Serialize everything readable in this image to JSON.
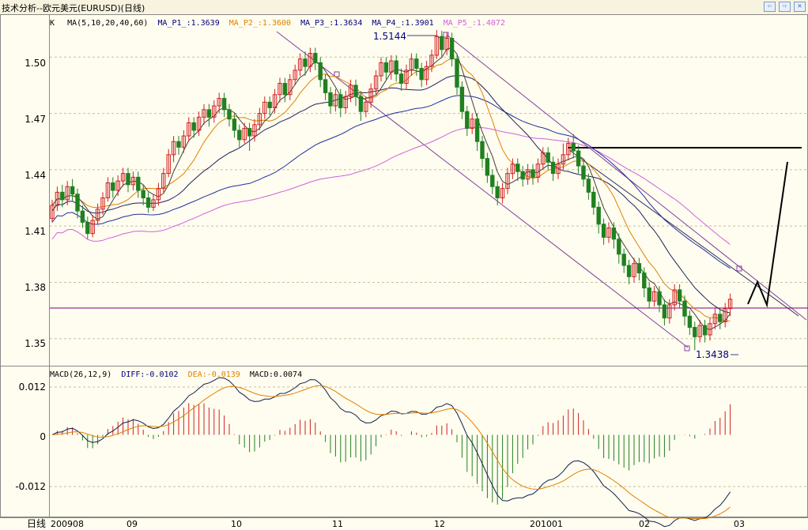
{
  "window": {
    "title": "技术分析--欧元美元(EURUSD)(日线)",
    "buttons": [
      {
        "name": "prev-button",
        "icon": "arrow-left-icon"
      },
      {
        "name": "next-button",
        "icon": "arrow-right-icon"
      },
      {
        "name": "close-button",
        "icon": "close-icon"
      }
    ],
    "button_glyphs": [
      "⇦",
      "⇨",
      "✕"
    ]
  },
  "main_panel": {
    "header": [
      {
        "text": "K",
        "color": "#000000"
      },
      {
        "text": "MA(5,10,20,40,60)",
        "color": "#000000"
      },
      {
        "text": "MA_P1_:1.3639",
        "color": "#000080"
      },
      {
        "text": "MA_P2_:1.3600",
        "color": "#e08000"
      },
      {
        "text": "MA_P3_:1.3634",
        "color": "#000080"
      },
      {
        "text": "MA_P4_:1.3901",
        "color": "#000080"
      },
      {
        "text": "MA_P5_:1.4072",
        "color": "#d060e0"
      }
    ],
    "high_label": "1.5144",
    "low_label": "1.3438",
    "y_ticks": [
      "1.50",
      "1.47",
      "1.44",
      "1.41",
      "1.38",
      "1.35"
    ]
  },
  "macd_panel": {
    "header": [
      {
        "text": "MACD(26,12,9)",
        "color": "#000000"
      },
      {
        "text": "DIFF:-0.0102",
        "color": "#000080"
      },
      {
        "text": "DEA:-0.0139",
        "color": "#e08000"
      },
      {
        "text": "MACD:0.0074",
        "color": "#000000"
      }
    ],
    "y_ticks": [
      "0.012",
      "0",
      "-0.012"
    ]
  },
  "x_axis": {
    "period_label": "日线",
    "ticks": [
      "200908",
      "09",
      "10",
      "11",
      "12",
      "201001",
      "02",
      "03"
    ]
  },
  "colors": {
    "background": "#fffdef",
    "up_candle": "#d02020",
    "down_candle": "#208020",
    "ma_blue": "#2030a0",
    "ma_orange": "#e08000",
    "ma_magenta": "#d060e0",
    "channel": "#8040a0",
    "grid": "#c8c0a0"
  },
  "chart_data": {
    "type": "candlestick",
    "title": "技术分析--欧元美元(EURUSD)(日线)",
    "ylim": [
      1.336,
      1.522
    ],
    "y_ticks": [
      1.35,
      1.38,
      1.41,
      1.44,
      1.47,
      1.5
    ],
    "x_ticks": [
      "200908",
      "09",
      "10",
      "11",
      "12",
      "201001",
      "02",
      "03"
    ],
    "candles": [
      [
        1.414,
        1.421,
        1.412,
        1.424
      ],
      [
        1.421,
        1.428,
        1.418,
        1.431
      ],
      [
        1.428,
        1.424,
        1.42,
        1.432
      ],
      [
        1.424,
        1.431,
        1.421,
        1.434
      ],
      [
        1.431,
        1.427,
        1.423,
        1.435
      ],
      [
        1.427,
        1.418,
        1.414,
        1.43
      ],
      [
        1.418,
        1.412,
        1.409,
        1.421
      ],
      [
        1.412,
        1.406,
        1.403,
        1.415
      ],
      [
        1.406,
        1.413,
        1.404,
        1.416
      ],
      [
        1.413,
        1.419,
        1.411,
        1.422
      ],
      [
        1.419,
        1.425,
        1.416,
        1.428
      ],
      [
        1.425,
        1.433,
        1.423,
        1.436
      ],
      [
        1.433,
        1.429,
        1.425,
        1.436
      ],
      [
        1.429,
        1.434,
        1.426,
        1.437
      ],
      [
        1.434,
        1.438,
        1.431,
        1.441
      ],
      [
        1.438,
        1.432,
        1.428,
        1.441
      ],
      [
        1.432,
        1.436,
        1.429,
        1.439
      ],
      [
        1.436,
        1.429,
        1.425,
        1.439
      ],
      [
        1.429,
        1.425,
        1.421,
        1.432
      ],
      [
        1.425,
        1.42,
        1.417,
        1.428
      ],
      [
        1.42,
        1.424,
        1.418,
        1.427
      ],
      [
        1.424,
        1.43,
        1.421,
        1.433
      ],
      [
        1.43,
        1.438,
        1.428,
        1.441
      ],
      [
        1.438,
        1.448,
        1.436,
        1.451
      ],
      [
        1.448,
        1.455,
        1.444,
        1.458
      ],
      [
        1.455,
        1.452,
        1.448,
        1.458
      ],
      [
        1.452,
        1.458,
        1.449,
        1.461
      ],
      [
        1.458,
        1.465,
        1.455,
        1.468
      ],
      [
        1.465,
        1.461,
        1.457,
        1.468
      ],
      [
        1.461,
        1.468,
        1.458,
        1.471
      ],
      [
        1.468,
        1.472,
        1.464,
        1.475
      ],
      [
        1.472,
        1.468,
        1.463,
        1.475
      ],
      [
        1.468,
        1.474,
        1.465,
        1.477
      ],
      [
        1.474,
        1.478,
        1.47,
        1.481
      ],
      [
        1.478,
        1.472,
        1.468,
        1.481
      ],
      [
        1.472,
        1.467,
        1.463,
        1.475
      ],
      [
        1.467,
        1.461,
        1.457,
        1.47
      ],
      [
        1.461,
        1.456,
        1.452,
        1.464
      ],
      [
        1.456,
        1.462,
        1.454,
        1.465
      ],
      [
        1.462,
        1.458,
        1.45,
        1.465
      ],
      [
        1.458,
        1.464,
        1.455,
        1.467
      ],
      [
        1.464,
        1.47,
        1.461,
        1.473
      ],
      [
        1.47,
        1.476,
        1.467,
        1.479
      ],
      [
        1.476,
        1.473,
        1.469,
        1.479
      ],
      [
        1.473,
        1.48,
        1.47,
        1.483
      ],
      [
        1.48,
        1.486,
        1.476,
        1.489
      ],
      [
        1.486,
        1.48,
        1.476,
        1.489
      ],
      [
        1.48,
        1.488,
        1.477,
        1.491
      ],
      [
        1.488,
        1.493,
        1.485,
        1.496
      ],
      [
        1.493,
        1.499,
        1.49,
        1.502
      ],
      [
        1.499,
        1.495,
        1.49,
        1.503
      ],
      [
        1.495,
        1.502,
        1.492,
        1.505
      ],
      [
        1.502,
        1.497,
        1.493,
        1.505
      ],
      [
        1.497,
        1.488,
        1.484,
        1.5
      ],
      [
        1.488,
        1.481,
        1.477,
        1.491
      ],
      [
        1.481,
        1.474,
        1.47,
        1.484
      ],
      [
        1.474,
        1.48,
        1.471,
        1.483
      ],
      [
        1.48,
        1.473,
        1.468,
        1.483
      ],
      [
        1.473,
        1.479,
        1.47,
        1.482
      ],
      [
        1.479,
        1.485,
        1.476,
        1.488
      ],
      [
        1.485,
        1.479,
        1.474,
        1.488
      ],
      [
        1.479,
        1.471,
        1.466,
        1.482
      ],
      [
        1.471,
        1.476,
        1.468,
        1.479
      ],
      [
        1.476,
        1.483,
        1.473,
        1.486
      ],
      [
        1.483,
        1.49,
        1.48,
        1.493
      ],
      [
        1.49,
        1.497,
        1.487,
        1.5
      ],
      [
        1.497,
        1.492,
        1.488,
        1.5
      ],
      [
        1.492,
        1.498,
        1.488,
        1.501
      ],
      [
        1.498,
        1.491,
        1.487,
        1.501
      ],
      [
        1.491,
        1.486,
        1.482,
        1.494
      ],
      [
        1.486,
        1.493,
        1.483,
        1.496
      ],
      [
        1.493,
        1.499,
        1.49,
        1.502
      ],
      [
        1.499,
        1.494,
        1.49,
        1.502
      ],
      [
        1.494,
        1.488,
        1.484,
        1.497
      ],
      [
        1.488,
        1.495,
        1.485,
        1.498
      ],
      [
        1.495,
        1.501,
        1.492,
        1.504
      ],
      [
        1.501,
        1.511,
        1.499,
        1.5144
      ],
      [
        1.511,
        1.504,
        1.5,
        1.514
      ],
      [
        1.504,
        1.51,
        1.501,
        1.513
      ],
      [
        1.51,
        1.499,
        1.495,
        1.513
      ],
      [
        1.499,
        1.484,
        1.48,
        1.502
      ],
      [
        1.484,
        1.471,
        1.467,
        1.487
      ],
      [
        1.471,
        1.462,
        1.458,
        1.474
      ],
      [
        1.462,
        1.467,
        1.459,
        1.47
      ],
      [
        1.467,
        1.455,
        1.45,
        1.47
      ],
      [
        1.455,
        1.446,
        1.441,
        1.458
      ],
      [
        1.446,
        1.437,
        1.433,
        1.449
      ],
      [
        1.437,
        1.431,
        1.427,
        1.44
      ],
      [
        1.431,
        1.425,
        1.421,
        1.434
      ],
      [
        1.425,
        1.43,
        1.422,
        1.433
      ],
      [
        1.43,
        1.438,
        1.427,
        1.441
      ],
      [
        1.438,
        1.443,
        1.435,
        1.446
      ],
      [
        1.443,
        1.439,
        1.434,
        1.446
      ],
      [
        1.439,
        1.435,
        1.431,
        1.442
      ],
      [
        1.435,
        1.44,
        1.432,
        1.443
      ],
      [
        1.44,
        1.436,
        1.432,
        1.443
      ],
      [
        1.436,
        1.443,
        1.433,
        1.446
      ],
      [
        1.443,
        1.449,
        1.44,
        1.452
      ],
      [
        1.449,
        1.444,
        1.44,
        1.452
      ],
      [
        1.444,
        1.438,
        1.434,
        1.447
      ],
      [
        1.438,
        1.443,
        1.435,
        1.446
      ],
      [
        1.443,
        1.448,
        1.44,
        1.454
      ],
      [
        1.448,
        1.454,
        1.445,
        1.457
      ],
      [
        1.454,
        1.45,
        1.446,
        1.459
      ],
      [
        1.45,
        1.442,
        1.438,
        1.453
      ],
      [
        1.442,
        1.435,
        1.431,
        1.445
      ],
      [
        1.435,
        1.428,
        1.424,
        1.438
      ],
      [
        1.428,
        1.42,
        1.416,
        1.431
      ],
      [
        1.42,
        1.411,
        1.406,
        1.423
      ],
      [
        1.411,
        1.404,
        1.4,
        1.414
      ],
      [
        1.404,
        1.409,
        1.401,
        1.412
      ],
      [
        1.409,
        1.403,
        1.398,
        1.412
      ],
      [
        1.403,
        1.395,
        1.39,
        1.406
      ],
      [
        1.395,
        1.389,
        1.385,
        1.398
      ],
      [
        1.389,
        1.383,
        1.379,
        1.392
      ],
      [
        1.383,
        1.39,
        1.38,
        1.393
      ],
      [
        1.39,
        1.385,
        1.381,
        1.393
      ],
      [
        1.385,
        1.377,
        1.372,
        1.388
      ],
      [
        1.377,
        1.37,
        1.366,
        1.38
      ],
      [
        1.37,
        1.375,
        1.367,
        1.378
      ],
      [
        1.375,
        1.368,
        1.364,
        1.378
      ],
      [
        1.368,
        1.361,
        1.357,
        1.371
      ],
      [
        1.361,
        1.368,
        1.358,
        1.371
      ],
      [
        1.368,
        1.376,
        1.365,
        1.379
      ],
      [
        1.376,
        1.37,
        1.366,
        1.379
      ],
      [
        1.37,
        1.362,
        1.357,
        1.373
      ],
      [
        1.362,
        1.356,
        1.352,
        1.365
      ],
      [
        1.356,
        1.351,
        1.3438,
        1.359
      ],
      [
        1.351,
        1.357,
        1.348,
        1.36
      ],
      [
        1.357,
        1.352,
        1.348,
        1.36
      ],
      [
        1.352,
        1.358,
        1.349,
        1.361
      ],
      [
        1.358,
        1.363,
        1.355,
        1.366
      ],
      [
        1.363,
        1.359,
        1.355,
        1.366
      ],
      [
        1.359,
        1.366,
        1.356,
        1.369
      ],
      [
        1.366,
        1.371,
        1.362,
        1.374
      ]
    ],
    "series": [
      {
        "name": "MA_P1_",
        "value": 1.3639
      },
      {
        "name": "MA_P2_",
        "value": 1.36
      },
      {
        "name": "MA_P3_",
        "value": 1.3634
      },
      {
        "name": "MA_P4_",
        "value": 1.3901
      },
      {
        "name": "MA_P5_",
        "value": 1.4072
      }
    ],
    "annotations": [
      {
        "text": "1.5144",
        "value": 1.5144
      },
      {
        "text": "1.3438",
        "value": 1.3438
      }
    ],
    "horizontal_lines": [
      1.3695,
      1.4535
    ],
    "macd": {
      "ylim": [
        -0.018,
        0.015
      ],
      "y_ticks": [
        0.012,
        0,
        -0.012
      ],
      "DIFF": -0.0102,
      "DEA": -0.0139,
      "MACD": 0.0074
    }
  }
}
